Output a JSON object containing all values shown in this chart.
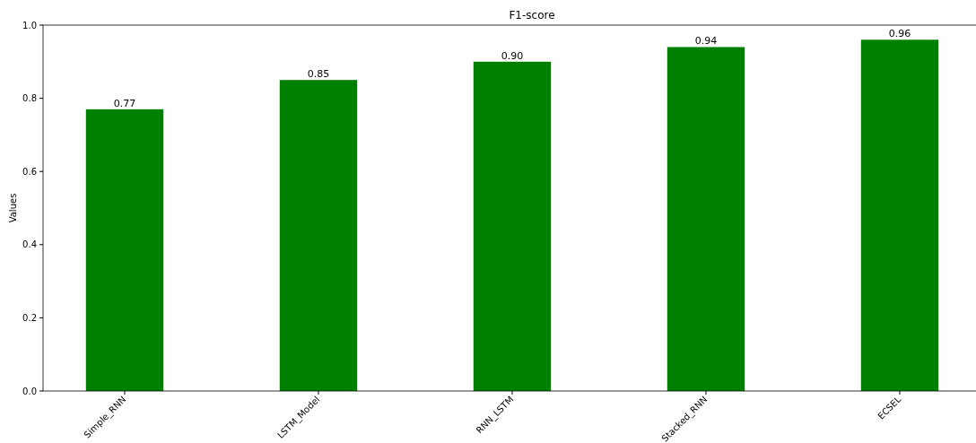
{
  "chart_data": {
    "type": "bar",
    "title": "F1-score",
    "ylabel": "Values",
    "categories": [
      "Simple_RNN",
      "LSTM_Model",
      "RNN_LSTM",
      "Stacked_RNN",
      "ECSEL"
    ],
    "values": [
      0.77,
      0.85,
      0.9,
      0.94,
      0.96
    ],
    "value_labels": [
      "0.77",
      "0.85",
      "0.90",
      "0.94",
      "0.96"
    ],
    "color": "#008000",
    "ylim": [
      0,
      1
    ],
    "yticks": [
      {
        "value": 0,
        "label": "0.0"
      },
      {
        "value": 0.2,
        "label": "0.2"
      },
      {
        "value": 0.4,
        "label": "0.4"
      },
      {
        "value": 0.6,
        "label": "0.6"
      },
      {
        "value": 0.8,
        "label": "0.8"
      },
      {
        "value": 1,
        "label": "1.0"
      }
    ],
    "grid": false
  }
}
